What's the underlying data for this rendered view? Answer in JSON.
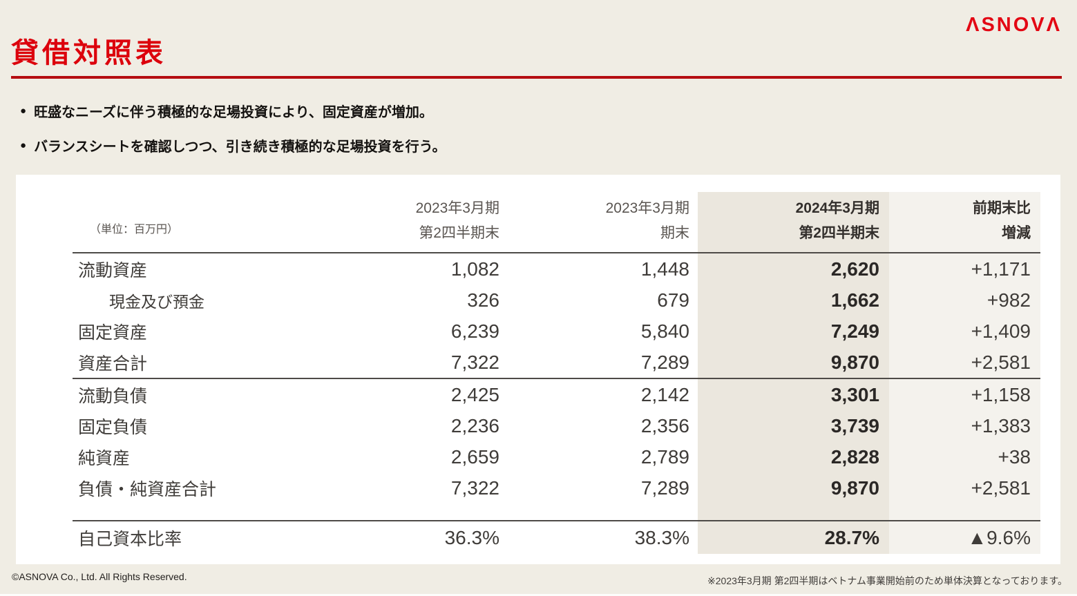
{
  "slide": {
    "company": "ASNOVA",
    "logo_display": "ΛSNOVΛ",
    "title": "貸借対照表",
    "bullets": [
      "旺盛なニーズに伴う積極的な足場投資により、固定資産が増加。",
      "バランスシートを確認しつつ、引き続き積極的な足場投資を行う。"
    ],
    "footer_left": "©ASNOVA Co., Ltd. All Rights Reserved.",
    "footer_note": "※2023年3月期 第2四半期はベトナム事業開始前のため単体決算となっております。"
  },
  "table": {
    "unit_label": "（単位：百万円）",
    "columns": [
      {
        "line1": "2023年3月期",
        "line2": "第2四半期末",
        "emphasis": false
      },
      {
        "line1": "2023年3月期",
        "line2": "期末",
        "emphasis": false
      },
      {
        "line1": "2024年3月期",
        "line2": "第2四半期末",
        "emphasis": true
      },
      {
        "line1": "前期末比",
        "line2": "増減",
        "emphasis": true
      }
    ],
    "rows": [
      {
        "label": "流動資産",
        "indent": false,
        "section_end": false,
        "values": [
          "1,082",
          "1,448",
          "2,620",
          "+1,171"
        ]
      },
      {
        "label": "現金及び預金",
        "indent": true,
        "section_end": false,
        "values": [
          "326",
          "679",
          "1,662",
          "+982"
        ]
      },
      {
        "label": "固定資産",
        "indent": false,
        "section_end": false,
        "values": [
          "6,239",
          "5,840",
          "7,249",
          "+1,409"
        ]
      },
      {
        "label": "資産合計",
        "indent": false,
        "section_end": true,
        "values": [
          "7,322",
          "7,289",
          "9,870",
          "+2,581"
        ]
      },
      {
        "label": "流動負債",
        "indent": false,
        "section_end": false,
        "values": [
          "2,425",
          "2,142",
          "3,301",
          "+1,158"
        ]
      },
      {
        "label": "固定負債",
        "indent": false,
        "section_end": false,
        "values": [
          "2,236",
          "2,356",
          "3,739",
          "+1,383"
        ]
      },
      {
        "label": "純資産",
        "indent": false,
        "section_end": false,
        "values": [
          "2,659",
          "2,789",
          "2,828",
          "+38"
        ]
      },
      {
        "label": "負債・純資産合計",
        "indent": false,
        "section_end": false,
        "values": [
          "7,322",
          "7,289",
          "9,870",
          "+2,581"
        ]
      }
    ],
    "ratio_row": {
      "label": "自己資本比率",
      "values": [
        "36.3%",
        "38.3%",
        "28.7%",
        "▲9.6%"
      ]
    }
  },
  "chart_data": {
    "type": "table",
    "title": "貸借対照表",
    "unit": "百万円",
    "categories": [
      "2023年3月期 第2四半期末",
      "2023年3月期 期末",
      "2024年3月期 第2四半期末",
      "前期末比 増減"
    ],
    "series": [
      {
        "name": "流動資産",
        "values": [
          1082,
          1448,
          2620,
          1171
        ]
      },
      {
        "name": "現金及び預金",
        "values": [
          326,
          679,
          1662,
          982
        ]
      },
      {
        "name": "固定資産",
        "values": [
          6239,
          5840,
          7249,
          1409
        ]
      },
      {
        "name": "資産合計",
        "values": [
          7322,
          7289,
          9870,
          2581
        ]
      },
      {
        "name": "流動負債",
        "values": [
          2425,
          2142,
          3301,
          1158
        ]
      },
      {
        "name": "固定負債",
        "values": [
          2236,
          2356,
          3739,
          1383
        ]
      },
      {
        "name": "純資産",
        "values": [
          2659,
          2789,
          2828,
          38
        ]
      },
      {
        "name": "負債・純資産合計",
        "values": [
          7322,
          7289,
          9870,
          2581
        ]
      },
      {
        "name": "自己資本比率(%)",
        "values": [
          36.3,
          38.3,
          28.7,
          -9.6
        ]
      }
    ]
  },
  "colors": {
    "background": "#f0ede4",
    "card": "#ffffff",
    "accent_red": "#dc000c",
    "divider_red": "#b50d11",
    "logo_red": "#e30613",
    "highlight_column": "#ebe7de",
    "change_column": "#f4f2ed",
    "text_dark": "#3f3c39",
    "text_bold": "#2b2826",
    "text_gray": "#5a5551"
  }
}
